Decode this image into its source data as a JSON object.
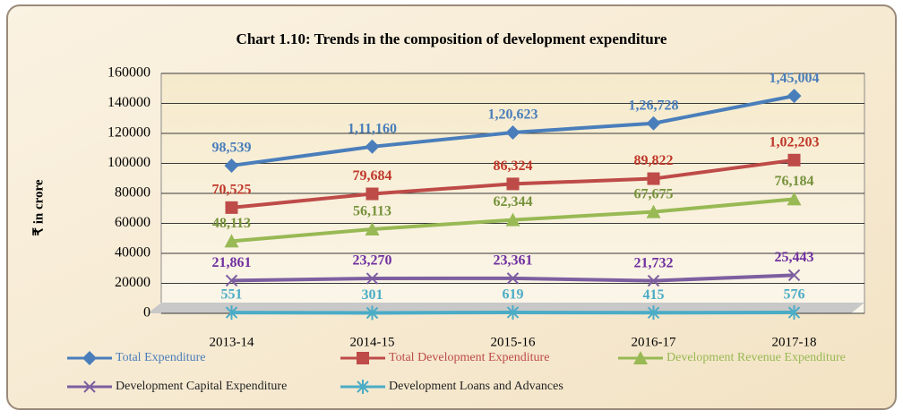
{
  "chart_data": {
    "type": "line",
    "title": "Chart 1.10: Trends in the composition of development expenditure",
    "ylabel": "₹ in crore",
    "categories": [
      "2013-14",
      "2014-15",
      "2015-16",
      "2016-17",
      "2017-18"
    ],
    "ylim": [
      0,
      160000
    ],
    "yticks": [
      0,
      20000,
      40000,
      60000,
      80000,
      100000,
      120000,
      140000,
      160000
    ],
    "grid": true,
    "series": [
      {
        "name": "Total Expenditure",
        "color": "#4a7ebb",
        "label_color": "#4a7ebb",
        "marker": "diamond",
        "values": [
          98539,
          111160,
          120623,
          126728,
          145004
        ],
        "value_labels": [
          "98,539",
          "1,11,160",
          "1,20,623",
          "1,26,728",
          "1,45,004"
        ]
      },
      {
        "name": "Total Development Expenditure",
        "color": "#be4b48",
        "label_color": "#c0392b",
        "marker": "square",
        "values": [
          70525,
          79684,
          86324,
          89822,
          102203
        ],
        "value_labels": [
          "70,525",
          "79,684",
          "86,324",
          "89,822",
          "1,02,203"
        ]
      },
      {
        "name": "Development Revenue Expenditure",
        "color": "#98b954",
        "label_color": "#76923c",
        "marker": "triangle",
        "values": [
          48113,
          56113,
          62344,
          67675,
          76184
        ],
        "value_labels": [
          "48,113",
          "56,113",
          "62,344",
          "67,675",
          "76,184"
        ]
      },
      {
        "name": "Development Capital Expenditure",
        "color": "#7d5fa0",
        "label_color": "#7030a0",
        "marker": "x",
        "values": [
          21861,
          23270,
          23361,
          21732,
          25443
        ],
        "value_labels": [
          "21,861",
          "23,270",
          "23,361",
          "21,732",
          "25,443"
        ]
      },
      {
        "name": "Development Loans and Advances",
        "color": "#4bacc6",
        "label_color": "#4bacc6",
        "marker": "star",
        "values": [
          551,
          301,
          619,
          415,
          576
        ]
      }
    ]
  }
}
